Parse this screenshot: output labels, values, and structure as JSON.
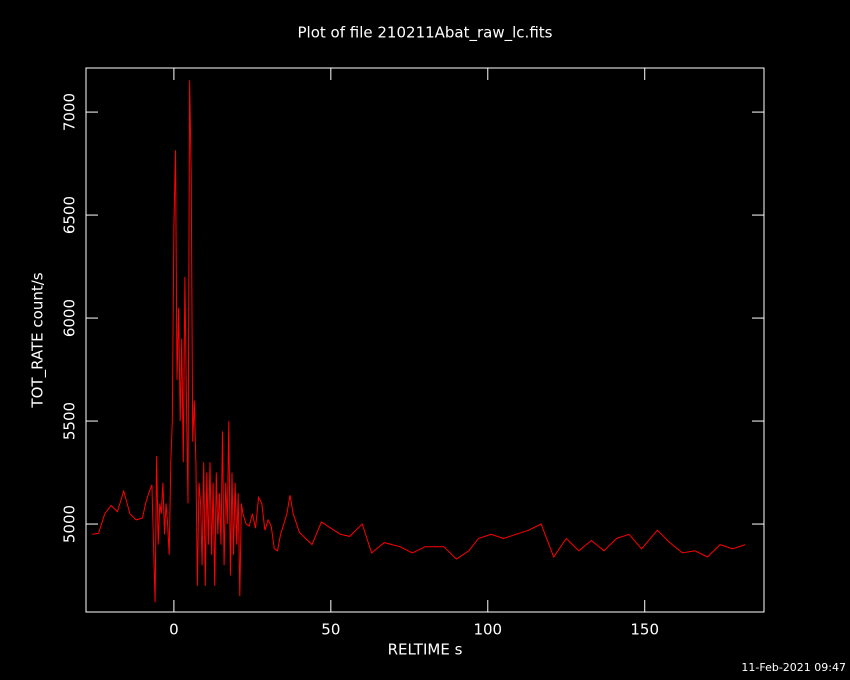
{
  "chart_data": {
    "type": "line",
    "title": "Plot of file 210211Abat_raw_lc.fits",
    "x_label": "RELTIME  s",
    "y_label": "TOT_RATE  count/s",
    "timestamp": "11-Feb-2021 09:47",
    "xlim": [
      -28,
      188
    ],
    "ylim": [
      4573,
      7214
    ],
    "xticks": [
      0,
      50,
      100,
      150
    ],
    "yticks": [
      5000,
      5500,
      6000,
      6500,
      7000
    ],
    "series": [
      {
        "color": "#ff0000",
        "x": [
          -26,
          -24,
          -22,
          -20,
          -18,
          -16,
          -14,
          -12,
          -10,
          -9,
          -8,
          -7,
          -6,
          -5.5,
          -5,
          -4.5,
          -4,
          -3.5,
          -3,
          -2.5,
          -2,
          -1.5,
          -1,
          -0.5,
          0,
          0.5,
          1,
          1.5,
          2,
          2.5,
          3,
          3.5,
          4,
          4.5,
          5,
          5.5,
          6,
          6.5,
          7,
          7.5,
          8,
          8.5,
          9,
          9.5,
          10,
          10.5,
          11,
          11.5,
          12,
          12.5,
          13,
          13.5,
          14,
          14.5,
          15,
          15.5,
          16,
          16.5,
          17,
          17.5,
          18,
          18.5,
          19,
          19.5,
          20,
          20.5,
          21,
          21.5,
          22,
          23,
          24,
          25,
          26,
          27,
          28,
          29,
          30,
          31,
          32,
          33,
          34,
          35,
          36,
          37,
          38,
          40,
          42,
          44,
          47,
          50,
          53,
          56,
          60,
          63,
          67,
          72,
          76,
          80,
          86,
          90,
          94,
          97,
          101,
          105,
          109,
          113,
          117,
          121,
          125,
          129,
          133,
          137,
          141,
          145,
          149,
          154,
          158,
          162,
          166,
          170,
          174,
          178,
          182
        ],
        "values": [
          4950,
          4955,
          5050,
          5090,
          5060,
          5160,
          5050,
          5020,
          5030,
          5100,
          5150,
          5190,
          4620,
          5330,
          4900,
          5100,
          5050,
          5200,
          4950,
          5100,
          5000,
          4850,
          5300,
          5500,
          6450,
          6815,
          5700,
          6050,
          5500,
          5900,
          5300,
          6200,
          5600,
          5100,
          7155,
          6700,
          5400,
          5600,
          5300,
          4700,
          5200,
          5100,
          4800,
          5300,
          4700,
          5250,
          4900,
          5300,
          4850,
          5200,
          4700,
          5250,
          4950,
          5150,
          4900,
          5450,
          4800,
          5200,
          5000,
          5500,
          4750,
          5250,
          4850,
          5200,
          4900,
          5150,
          4650,
          5100,
          5050,
          5000,
          4990,
          5050,
          4980,
          5130,
          5100,
          4970,
          5020,
          4990,
          4880,
          4870,
          4950,
          5000,
          5050,
          5140,
          5050,
          4960,
          4930,
          4900,
          5010,
          4980,
          4950,
          4940,
          5000,
          4860,
          4910,
          4890,
          4860,
          4890,
          4890,
          4830,
          4870,
          4930,
          4950,
          4930,
          4950,
          4970,
          5000,
          4840,
          4930,
          4870,
          4920,
          4870,
          4930,
          4950,
          4880,
          4970,
          4910,
          4860,
          4870,
          4840,
          4900,
          4880,
          4900
        ]
      }
    ]
  }
}
